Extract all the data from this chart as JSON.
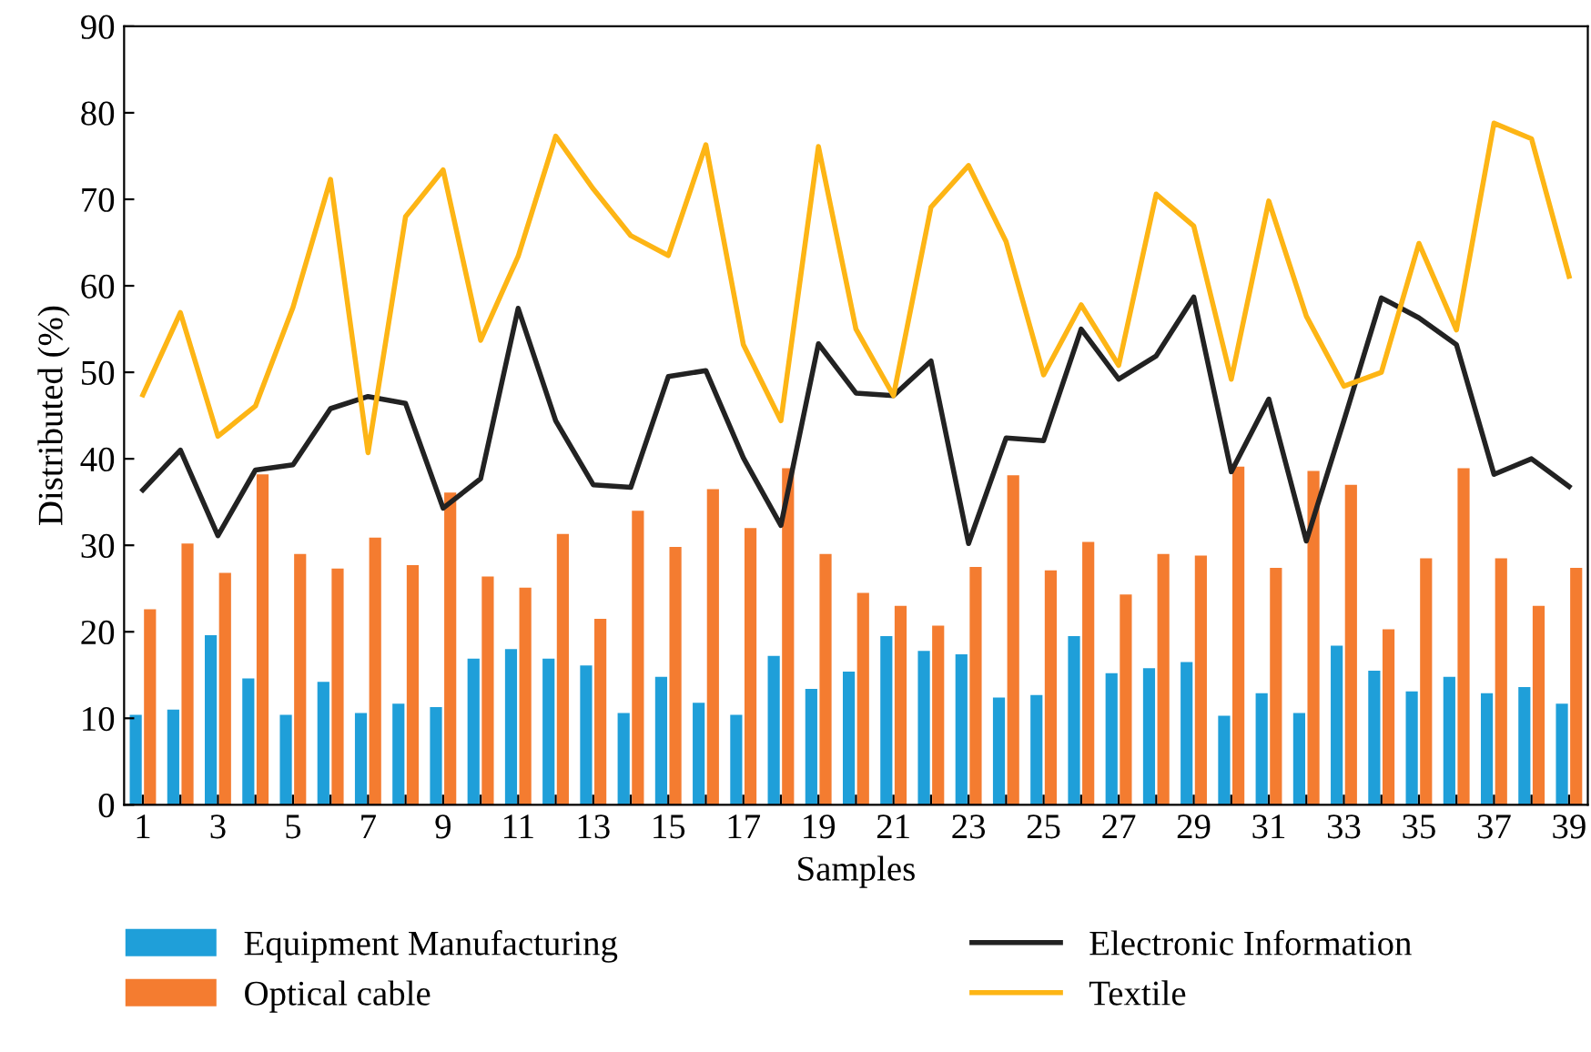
{
  "chart_data": {
    "type": "bar",
    "xlabel": "Samples",
    "ylabel": "Distributed (%)",
    "x": [
      1,
      2,
      3,
      4,
      5,
      6,
      7,
      8,
      9,
      10,
      11,
      12,
      13,
      14,
      15,
      16,
      17,
      18,
      19,
      20,
      21,
      22,
      23,
      24,
      25,
      26,
      27,
      28,
      29,
      30,
      31,
      32,
      33,
      34,
      35,
      36,
      37,
      38,
      39
    ],
    "xlim": [
      0.5,
      39.5
    ],
    "ylim": [
      0,
      90
    ],
    "yticks": [
      0,
      10,
      20,
      30,
      40,
      50,
      60,
      70,
      80,
      90
    ],
    "xticks": [
      1,
      {
        "value": 2,
        "label": null
      },
      3,
      {
        "value": 4,
        "label": null
      },
      5,
      {
        "value": 6,
        "label": null
      },
      7,
      {
        "value": 8,
        "label": null
      },
      9,
      {
        "value": 10,
        "label": null
      },
      11,
      {
        "value": 12,
        "label": null
      },
      13,
      {
        "value": 14,
        "label": null
      },
      15,
      {
        "value": 16,
        "label": null
      },
      17,
      {
        "value": 18,
        "label": null
      },
      19,
      {
        "value": 20,
        "label": null
      },
      21,
      {
        "value": 22,
        "label": null
      },
      23,
      {
        "value": 24,
        "label": null
      },
      25,
      {
        "value": 26,
        "label": null
      },
      27,
      {
        "value": 28,
        "label": null
      },
      29,
      {
        "value": 30,
        "label": null
      },
      31,
      {
        "value": 32,
        "label": null
      },
      33,
      {
        "value": 34,
        "label": null
      },
      35,
      {
        "value": 36,
        "label": null
      },
      37,
      {
        "value": 38,
        "label": null
      },
      39
    ],
    "grid": false,
    "legend": "bottom",
    "series": [
      {
        "name": "Equipment Manufacturing",
        "color": "#1f9fd9",
        "values": [
          10.4,
          11,
          19.6,
          14.6,
          10.4,
          14.2,
          10.6,
          11.7,
          11.3,
          16.9,
          18,
          16.9,
          16.1,
          10.6,
          14.8,
          11.8,
          10.4,
          17.2,
          13.4,
          15.4,
          19.5,
          17.8,
          17.4,
          12.4,
          12.7,
          19.5,
          15.2,
          15.8,
          16.5,
          10.3,
          12.9,
          10.6,
          18.4,
          15.5,
          13.1,
          14.8,
          12.9,
          13.6,
          11.7
        ]
      },
      {
        "name": "Optical cable",
        "color": "#f47c30",
        "values": [
          22.6,
          30.2,
          26.8,
          38.2,
          29,
          27.3,
          30.9,
          27.7,
          36.1,
          26.4,
          25.1,
          31.3,
          21.5,
          34,
          29.8,
          36.5,
          32,
          38.9,
          29,
          24.5,
          23,
          20.7,
          27.5,
          38.1,
          27.1,
          30.4,
          24.3,
          29,
          28.8,
          39.1,
          27.4,
          38.6,
          37,
          20.3,
          28.5,
          38.9,
          28.5,
          23,
          27.4
        ]
      },
      {
        "name": "Electronic Information",
        "type": "line",
        "color": "#222222",
        "values": [
          36.4,
          41,
          31.1,
          38.7,
          39.3,
          45.8,
          47.2,
          46.4,
          34.3,
          37.7,
          57.4,
          44.4,
          37,
          36.7,
          49.5,
          50.2,
          40.1,
          32.3,
          53.3,
          47.6,
          47.3,
          51.3,
          30.2,
          42.4,
          42.1,
          55,
          49.2,
          51.9,
          58.7,
          38.5,
          46.9,
          30.5,
          44.4,
          58.6,
          56.3,
          53.2,
          38.2,
          40,
          36.8
        ]
      },
      {
        "name": "Textile",
        "type": "line",
        "color": "#fdb515",
        "values": [
          47.4,
          56.9,
          42.6,
          46.1,
          57.5,
          72.3,
          40.7,
          68,
          73.4,
          53.7,
          63.4,
          77.3,
          71.2,
          65.8,
          63.5,
          76.3,
          53.2,
          44.4,
          76.1,
          55,
          47.3,
          69.1,
          73.9,
          65.1,
          49.7,
          57.8,
          50.8,
          70.6,
          66.9,
          49.2,
          69.8,
          56.5,
          48.4,
          50,
          64.9,
          54.9,
          78.8,
          77,
          61.1
        ]
      }
    ]
  }
}
